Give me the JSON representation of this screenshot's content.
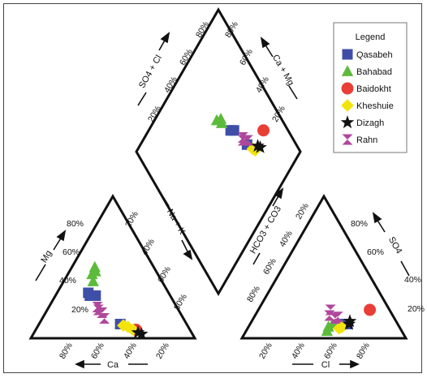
{
  "chart_data": {
    "type": "scatter",
    "subtype": "piper-diagram",
    "legend": {
      "title": "Legend",
      "placement": "top-right"
    },
    "axes": {
      "cation_left": "Mg",
      "cation_bottom": "Ca",
      "anion_right": "SO4",
      "anion_bottom": "Cl",
      "diamond_upper_left": "SO4 + Cl",
      "diamond_upper_right": "Ca + Mg",
      "diamond_lower_left": "Na + K",
      "diamond_lower_right": "HCO3 + CO3",
      "tick_labels": [
        "20%",
        "40%",
        "60%",
        "80%"
      ]
    },
    "series": [
      {
        "name": "Qasabeh",
        "color": "#3f4fa8",
        "marker": "square",
        "cation": [
          [
            0.3,
            0.3
          ],
          [
            0.28,
            0.32
          ],
          [
            0.35,
            0.3
          ],
          [
            0.55,
            0.1
          ]
        ],
        "anion": [
          [
            0.66,
            0.1
          ],
          [
            0.62,
            0.1
          ]
        ],
        "diamond": [
          [
            0.67,
            0.48
          ],
          [
            0.65,
            0.5
          ],
          [
            0.7,
            0.35
          ]
        ]
      },
      {
        "name": "Bahabad",
        "color": "#5dbb3c",
        "marker": "triangle",
        "cation": [
          [
            0.3,
            0.4
          ],
          [
            0.27,
            0.45
          ],
          [
            0.3,
            0.47
          ],
          [
            0.28,
            0.5
          ]
        ],
        "anion": [
          [
            0.52,
            0.05
          ],
          [
            0.53,
            0.08
          ],
          [
            0.56,
            0.1
          ]
        ],
        "diamond": [
          [
            0.62,
            0.58
          ],
          [
            0.6,
            0.62
          ],
          [
            0.63,
            0.6
          ]
        ]
      },
      {
        "name": "Baidokht",
        "color": "#e83e36",
        "marker": "circle",
        "cation": [
          [
            0.65,
            0.06
          ]
        ],
        "anion": [
          [
            0.85,
            0.2
          ]
        ],
        "diamond": [
          [
            0.85,
            0.3
          ]
        ]
      },
      {
        "name": "Kheshuie",
        "color": "#f2e30d",
        "marker": "diamond",
        "cation": [
          [
            0.6,
            0.08
          ],
          [
            0.57,
            0.09
          ],
          [
            0.63,
            0.06
          ]
        ],
        "anion": [
          [
            0.6,
            0.07
          ],
          [
            0.62,
            0.08
          ]
        ],
        "diamond": [
          [
            0.72,
            0.3
          ],
          [
            0.73,
            0.28
          ]
        ]
      },
      {
        "name": "Dizagh",
        "color": "#111111",
        "marker": "star",
        "cation": [
          [
            0.66,
            0.04
          ],
          [
            0.68,
            0.03
          ]
        ],
        "anion": [
          [
            0.67,
            0.1
          ],
          [
            0.68,
            0.12
          ]
        ],
        "diamond": [
          [
            0.76,
            0.28
          ],
          [
            0.77,
            0.26
          ]
        ]
      },
      {
        "name": "Rahn",
        "color": "#b0479c",
        "marker": "hourglass",
        "cation": [
          [
            0.39,
            0.2
          ],
          [
            0.42,
            0.18
          ],
          [
            0.44,
            0.14
          ],
          [
            0.38,
            0.22
          ]
        ],
        "anion": [
          [
            0.54,
            0.16
          ],
          [
            0.55,
            0.2
          ],
          [
            0.58,
            0.14
          ],
          [
            0.6,
            0.15
          ]
        ],
        "diamond": [
          [
            0.7,
            0.4
          ],
          [
            0.71,
            0.37
          ],
          [
            0.72,
            0.36
          ],
          [
            0.69,
            0.39
          ]
        ]
      }
    ]
  }
}
